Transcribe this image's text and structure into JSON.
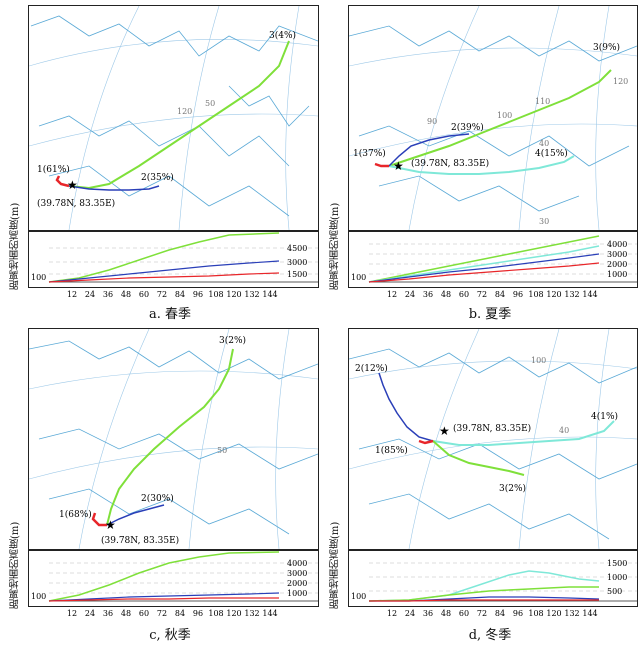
{
  "y_axis_label": "距离地面的高度(m)",
  "origin_label": "(39.78N, 83.35E)",
  "colors": {
    "t1": "#e8262a",
    "t2": "#2a3fb8",
    "t3": "#7fe03a",
    "t4": "#7fe8d8",
    "border": "#5aa9d6",
    "grid": "#bbbbbb"
  },
  "panels": [
    {
      "id": "a",
      "caption": "a. 春季",
      "map_lat_labels": [
        "50",
        "120"
      ],
      "trajectory_labels": [
        {
          "text": "1(61%)"
        },
        {
          "text": "2(35%)"
        },
        {
          "text": "3(4%)"
        }
      ],
      "x_ticks": [
        "12",
        "24",
        "36",
        "48",
        "60",
        "72",
        "84",
        "96",
        "108",
        "120",
        "132",
        "144"
      ],
      "y_min_label": "100",
      "y_ticks": [
        "4500",
        "3000",
        "1500"
      ]
    },
    {
      "id": "b",
      "caption": "b. 夏季",
      "map_lat_labels": [
        "120",
        "110",
        "90",
        "100",
        "40",
        "30"
      ],
      "trajectory_labels": [
        {
          "text": "1(37%)"
        },
        {
          "text": "2(39%)"
        },
        {
          "text": "3(9%)"
        },
        {
          "text": "4(15%)"
        }
      ],
      "x_ticks": [
        "12",
        "24",
        "36",
        "48",
        "60",
        "72",
        "84",
        "96",
        "108",
        "120",
        "132",
        "144"
      ],
      "y_min_label": "100",
      "y_ticks": [
        "4000",
        "3000",
        "2000",
        "1000"
      ]
    },
    {
      "id": "c",
      "caption": "c, 秋季",
      "map_lat_labels": [
        "50"
      ],
      "trajectory_labels": [
        {
          "text": "1(68%)"
        },
        {
          "text": "2(30%)"
        },
        {
          "text": "3(2%)"
        }
      ],
      "x_ticks": [
        "12",
        "24",
        "36",
        "48",
        "60",
        "72",
        "84",
        "96",
        "108",
        "120",
        "132",
        "144"
      ],
      "y_min_label": "100",
      "y_ticks": [
        "4000",
        "3000",
        "2000",
        "1000"
      ]
    },
    {
      "id": "d",
      "caption": "d, 冬季",
      "map_lat_labels": [
        "100",
        "40"
      ],
      "trajectory_labels": [
        {
          "text": "1(85%)"
        },
        {
          "text": "2(12%)"
        },
        {
          "text": "3(2%)"
        },
        {
          "text": "4(1%)"
        }
      ],
      "x_ticks": [
        "12",
        "24",
        "36",
        "48",
        "60",
        "72",
        "84",
        "96",
        "108",
        "120",
        "132",
        "144"
      ],
      "y_min_label": "100",
      "y_ticks": [
        "1500",
        "1000",
        "500"
      ]
    }
  ]
}
